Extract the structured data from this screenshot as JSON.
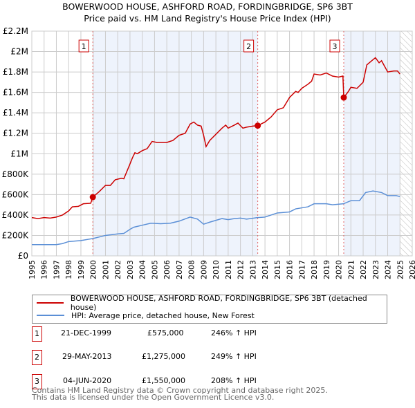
{
  "chart_data": {
    "type": "line",
    "title": "BOWERWOOD HOUSE, ASHFORD ROAD, FORDINGBRIDGE, SP6 3BT",
    "subtitle": "Price paid vs. HM Land Registry's House Price Index (HPI)",
    "xlim": [
      1995,
      2026
    ],
    "ylim": [
      0,
      2200000
    ],
    "x_ticks": [
      "1995",
      "1996",
      "1997",
      "1998",
      "1999",
      "2000",
      "2001",
      "2002",
      "2003",
      "2004",
      "2005",
      "2006",
      "2007",
      "2008",
      "2009",
      "2010",
      "2011",
      "2012",
      "2013",
      "2014",
      "2015",
      "2016",
      "2017",
      "2018",
      "2019",
      "2020",
      "2021",
      "2022",
      "2023",
      "2024",
      "2025",
      "2026"
    ],
    "y_ticks": [
      {
        "v": 0,
        "label": "£0"
      },
      {
        "v": 200000,
        "label": "£200K"
      },
      {
        "v": 400000,
        "label": "£400K"
      },
      {
        "v": 600000,
        "label": "£600K"
      },
      {
        "v": 800000,
        "label": "£800K"
      },
      {
        "v": 1000000,
        "label": "£1M"
      },
      {
        "v": 1200000,
        "label": "£1.2M"
      },
      {
        "v": 1400000,
        "label": "£1.4M"
      },
      {
        "v": 1600000,
        "label": "£1.6M"
      },
      {
        "v": 1800000,
        "label": "£1.8M"
      },
      {
        "v": 2000000,
        "label": "£2M"
      },
      {
        "v": 2200000,
        "label": "£2.2M"
      }
    ],
    "grid": true,
    "series": [
      {
        "name": "BOWERWOOD HOUSE, ASHFORD ROAD, FORDINGBRIDGE, SP6 3BT (detached house)",
        "color": "#cc0000",
        "x": [
          1995,
          1995.5,
          1996,
          1996.5,
          1997,
          1997.5,
          1998,
          1998.3,
          1998.8,
          1999.2,
          1999.8,
          1999.97,
          2000.5,
          2001,
          2001.4,
          2001.8,
          2002.3,
          2002.5,
          2003,
          2003.2,
          2003.4,
          2003.6,
          2004,
          2004.4,
          2004.8,
          2005.2,
          2006,
          2006.5,
          2007,
          2007.5,
          2007.9,
          2008.2,
          2008.5,
          2008.8,
          2009,
          2009.2,
          2009.5,
          2010,
          2010.5,
          2010.8,
          2011,
          2011.5,
          2011.8,
          2012.2,
          2012.5,
          2013,
          2013.41,
          2014,
          2014.5,
          2015,
          2015.5,
          2016,
          2016.5,
          2016.7,
          2017,
          2017.5,
          2017.8,
          2018,
          2018.5,
          2019,
          2019.5,
          2020,
          2020.35,
          2020.42,
          2020.8,
          2021,
          2021.5,
          2022,
          2022.3,
          2022.7,
          2023,
          2023.3,
          2023.5,
          2024,
          2024.5,
          2024.8,
          2025
        ],
        "y": [
          375000,
          365000,
          375000,
          370000,
          380000,
          400000,
          440000,
          480000,
          485000,
          510000,
          515000,
          575000,
          630000,
          690000,
          690000,
          745000,
          760000,
          755000,
          900000,
          960000,
          1010000,
          1000000,
          1030000,
          1050000,
          1120000,
          1110000,
          1110000,
          1130000,
          1180000,
          1200000,
          1290000,
          1310000,
          1280000,
          1270000,
          1180000,
          1070000,
          1130000,
          1190000,
          1250000,
          1280000,
          1250000,
          1280000,
          1300000,
          1250000,
          1260000,
          1270000,
          1275000,
          1310000,
          1360000,
          1430000,
          1450000,
          1550000,
          1610000,
          1600000,
          1640000,
          1680000,
          1710000,
          1780000,
          1770000,
          1790000,
          1760000,
          1750000,
          1760000,
          1550000,
          1610000,
          1650000,
          1640000,
          1700000,
          1870000,
          1910000,
          1940000,
          1890000,
          1910000,
          1800000,
          1810000,
          1810000,
          1780000
        ]
      },
      {
        "name": "HPI: Average price, detached house, New Forest",
        "color": "#5b8fd6",
        "x": [
          1995,
          1997,
          1997.5,
          1998,
          1999,
          2000,
          2001,
          2002,
          2002.5,
          2003,
          2003.3,
          2004,
          2004.7,
          2005.5,
          2006.3,
          2007,
          2007.9,
          2008.5,
          2009,
          2009.5,
          2010.5,
          2011,
          2011.5,
          2012,
          2012.5,
          2013.4,
          2014,
          2014.5,
          2015,
          2016,
          2016.5,
          2017.5,
          2018,
          2019,
          2019.5,
          2020.4,
          2021,
          2021.7,
          2022.2,
          2022.8,
          2023.5,
          2024,
          2024.7,
          2025
        ],
        "y": [
          110000,
          110000,
          120000,
          140000,
          150000,
          170000,
          200000,
          215000,
          220000,
          260000,
          280000,
          300000,
          320000,
          315000,
          320000,
          340000,
          380000,
          360000,
          310000,
          330000,
          365000,
          355000,
          365000,
          370000,
          360000,
          375000,
          380000,
          400000,
          420000,
          430000,
          460000,
          480000,
          510000,
          510000,
          500000,
          510000,
          540000,
          540000,
          620000,
          635000,
          620000,
          590000,
          590000,
          580000
        ]
      }
    ],
    "sales": [
      {
        "id": "1",
        "x": 1999.97,
        "y": 575000,
        "date": "21-DEC-1999",
        "price": "£575,000",
        "hpi": "246% ↑ HPI"
      },
      {
        "id": "2",
        "x": 2013.41,
        "y": 1275000,
        "date": "29-MAY-2013",
        "price": "£1,275,000",
        "hpi": "249% ↑ HPI"
      },
      {
        "id": "3",
        "x": 2020.42,
        "y": 1550000,
        "date": "04-JUN-2020",
        "price": "£1,550,000",
        "hpi": "208% ↑ HPI"
      }
    ],
    "shaded_ranges": [
      [
        1999.97,
        2013.41
      ],
      [
        2020.42,
        2025
      ]
    ],
    "hatched_from": 2025,
    "legend_placement": "below"
  },
  "footer": {
    "line1": "Contains HM Land Registry data © Crown copyright and database right 2025.",
    "line2": "This data is licensed under the Open Government Licence v3.0."
  }
}
